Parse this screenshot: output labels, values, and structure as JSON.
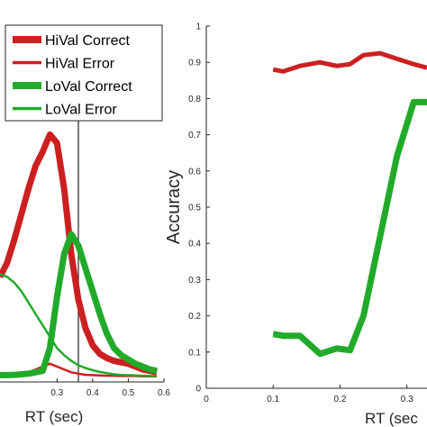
{
  "colors": {
    "hival": "#cc2020",
    "loval": "#22aa2a",
    "axis": "#262626",
    "vline": "#333333"
  },
  "chart_data": [
    {
      "type": "line",
      "xlabel": "RT (sec)",
      "ylabel": "",
      "xlim": [
        0.13,
        0.6
      ],
      "ylim": [
        0,
        1
      ],
      "xticks": [
        "0.3",
        "0.4",
        "0.5",
        "0.6"
      ],
      "xtick_values": [
        0.3,
        0.4,
        0.5,
        0.6
      ],
      "reference_line_x": 0.36,
      "legend_position": "top",
      "series": [
        {
          "name": "HiVal Correct",
          "color": "#cc2020",
          "width": "thick",
          "x": [
            0.14,
            0.16,
            0.18,
            0.2,
            0.22,
            0.24,
            0.26,
            0.28,
            0.3,
            0.32,
            0.34,
            0.36,
            0.38,
            0.4,
            0.42,
            0.44,
            0.46,
            0.48,
            0.5,
            0.52,
            0.54,
            0.56,
            0.58
          ],
          "y": [
            0.35,
            0.4,
            0.48,
            0.57,
            0.66,
            0.74,
            0.79,
            0.85,
            0.82,
            0.66,
            0.43,
            0.27,
            0.17,
            0.11,
            0.08,
            0.065,
            0.055,
            0.05,
            0.045,
            0.035,
            0.025,
            0.02,
            0.015
          ]
        },
        {
          "name": "HiVal Error",
          "color": "#cc2020",
          "width": "thin",
          "x": [
            0.14,
            0.16,
            0.18,
            0.2,
            0.22,
            0.24,
            0.26,
            0.28,
            0.3,
            0.32,
            0.34,
            0.36,
            0.38,
            0.4,
            0.42,
            0.44,
            0.46,
            0.48,
            0.5,
            0.52,
            0.54,
            0.56,
            0.58
          ],
          "y": [
            0.005,
            0.006,
            0.008,
            0.01,
            0.015,
            0.025,
            0.035,
            0.045,
            0.035,
            0.025,
            0.015,
            0.01,
            0.006,
            0.005,
            0.004,
            0.003,
            0.003,
            0.002,
            0.002,
            0.002,
            0.001,
            0.001,
            0.001
          ]
        },
        {
          "name": "LoVal Correct",
          "color": "#22aa2a",
          "width": "thick",
          "x": [
            0.14,
            0.16,
            0.18,
            0.2,
            0.22,
            0.24,
            0.26,
            0.28,
            0.3,
            0.32,
            0.34,
            0.36,
            0.38,
            0.4,
            0.42,
            0.44,
            0.46,
            0.48,
            0.5,
            0.52,
            0.54,
            0.56,
            0.58
          ],
          "y": [
            0.005,
            0.005,
            0.006,
            0.008,
            0.01,
            0.015,
            0.02,
            0.1,
            0.28,
            0.43,
            0.5,
            0.46,
            0.38,
            0.3,
            0.22,
            0.15,
            0.1,
            0.075,
            0.06,
            0.045,
            0.035,
            0.025,
            0.02
          ]
        },
        {
          "name": "LoVal Error",
          "color": "#22aa2a",
          "width": "thin",
          "x": [
            0.14,
            0.16,
            0.18,
            0.2,
            0.22,
            0.24,
            0.26,
            0.28,
            0.3,
            0.32,
            0.34,
            0.36,
            0.38,
            0.4,
            0.42,
            0.44,
            0.46,
            0.48,
            0.5,
            0.52,
            0.54,
            0.56,
            0.58
          ],
          "y": [
            0.36,
            0.35,
            0.33,
            0.3,
            0.26,
            0.22,
            0.18,
            0.14,
            0.1,
            0.075,
            0.055,
            0.04,
            0.03,
            0.022,
            0.016,
            0.012,
            0.008,
            0.006,
            0.005,
            0.004,
            0.003,
            0.002,
            0.002
          ]
        }
      ]
    },
    {
      "type": "line",
      "xlabel": "RT (sec",
      "ylabel": "Accuracy",
      "xlim": [
        0,
        0.33
      ],
      "ylim": [
        0,
        1
      ],
      "xticks": [
        "0",
        "0.1",
        "0.2",
        "0.3"
      ],
      "xtick_values": [
        0,
        0.1,
        0.2,
        0.3
      ],
      "yticks": [
        "0",
        "0.1",
        "0.2",
        "0.3",
        "0.4",
        "0.5",
        "0.6",
        "0.7",
        "0.8",
        "0.9",
        "1"
      ],
      "ytick_values": [
        0,
        0.1,
        0.2,
        0.3,
        0.4,
        0.5,
        0.6,
        0.7,
        0.8,
        0.9,
        1
      ],
      "series": [
        {
          "name": "HiVal",
          "color": "#cc2020",
          "width": "medium",
          "x": [
            0.1,
            0.115,
            0.14,
            0.17,
            0.195,
            0.215,
            0.235,
            0.26,
            0.285,
            0.31,
            0.33
          ],
          "y": [
            0.88,
            0.875,
            0.89,
            0.9,
            0.89,
            0.895,
            0.92,
            0.925,
            0.91,
            0.895,
            0.885
          ]
        },
        {
          "name": "LoVal",
          "color": "#22aa2a",
          "width": "thick",
          "x": [
            0.1,
            0.115,
            0.14,
            0.17,
            0.195,
            0.215,
            0.235,
            0.26,
            0.285,
            0.31,
            0.33
          ],
          "y": [
            0.15,
            0.145,
            0.145,
            0.095,
            0.11,
            0.105,
            0.2,
            0.42,
            0.64,
            0.79,
            0.79
          ]
        }
      ]
    }
  ]
}
